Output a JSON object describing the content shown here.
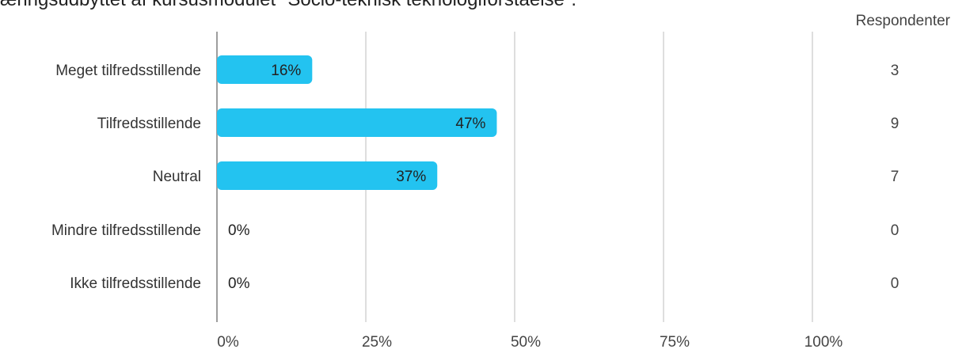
{
  "title": "æringsudbyttet af kursusmodulet \"Socio-teknisk teknologiforståelse\".",
  "respondents_header": "Respondenter",
  "chart_data": {
    "type": "bar",
    "orientation": "horizontal",
    "categories": [
      "Meget tilfredsstillende",
      "Tilfredsstillende",
      "Neutral",
      "Mindre tilfredsstillende",
      "Ikke tilfredsstillende"
    ],
    "values": [
      16,
      47,
      37,
      0,
      0
    ],
    "value_labels": [
      "16%",
      "47%",
      "37%",
      "0%",
      "0%"
    ],
    "respondents": [
      3,
      9,
      7,
      0,
      0
    ],
    "x_ticks": [
      0,
      25,
      50,
      75,
      100
    ],
    "x_tick_labels": [
      "0%",
      "25%",
      "50%",
      "75%",
      "100%"
    ],
    "xlim": [
      0,
      100
    ],
    "grid": true,
    "bar_color": "#23c3f0"
  }
}
